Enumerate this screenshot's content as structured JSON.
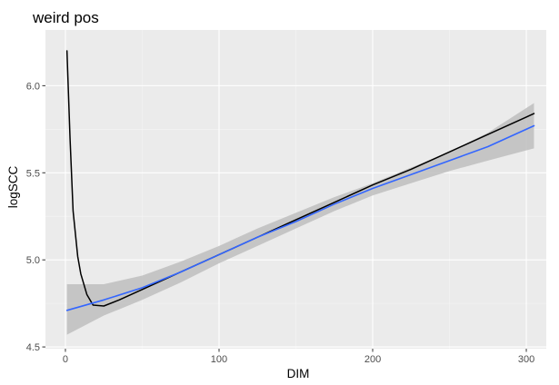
{
  "chart_data": {
    "type": "line",
    "title": "weird pos",
    "xlabel": "DIM",
    "ylabel": "logSCC",
    "xlim": [
      -13,
      313
    ],
    "ylim": [
      4.49,
      6.32
    ],
    "x_ticks": [
      {
        "value": 0,
        "label": "0"
      },
      {
        "value": 100,
        "label": "100"
      },
      {
        "value": 200,
        "label": "200"
      },
      {
        "value": 300,
        "label": "300"
      }
    ],
    "y_ticks": [
      {
        "value": 4.5,
        "label": "4.5"
      },
      {
        "value": 5.0,
        "label": "5.0"
      },
      {
        "value": 5.5,
        "label": "5.5"
      },
      {
        "value": 6.0,
        "label": "6.0"
      }
    ],
    "grid": true,
    "panel_background": "#ebebeb",
    "series": [
      {
        "kind": "line",
        "color": "#000000",
        "x": [
          1,
          3,
          5,
          8,
          10,
          14,
          18,
          25,
          35,
          50,
          75,
          100,
          125,
          150,
          175,
          200,
          225,
          250,
          275,
          300,
          305
        ],
        "y": [
          6.2,
          5.7,
          5.28,
          5.02,
          4.92,
          4.8,
          4.74,
          4.735,
          4.77,
          4.83,
          4.93,
          5.03,
          5.13,
          5.23,
          5.33,
          5.43,
          5.52,
          5.62,
          5.72,
          5.82,
          5.84
        ]
      },
      {
        "kind": "smooth",
        "color": "#3366ff",
        "band_color": "#bebebe",
        "x": [
          1,
          25,
          50,
          75,
          100,
          125,
          150,
          175,
          200,
          225,
          250,
          275,
          305
        ],
        "y": [
          4.71,
          4.77,
          4.84,
          4.93,
          5.03,
          5.13,
          5.22,
          5.32,
          5.41,
          5.49,
          5.57,
          5.65,
          5.77
        ],
        "lower": [
          4.57,
          4.68,
          4.77,
          4.87,
          4.98,
          5.08,
          5.18,
          5.28,
          5.37,
          5.44,
          5.51,
          5.57,
          5.64
        ],
        "upper": [
          4.86,
          4.86,
          4.91,
          4.99,
          5.08,
          5.18,
          5.27,
          5.36,
          5.44,
          5.53,
          5.62,
          5.73,
          5.9
        ]
      }
    ]
  }
}
